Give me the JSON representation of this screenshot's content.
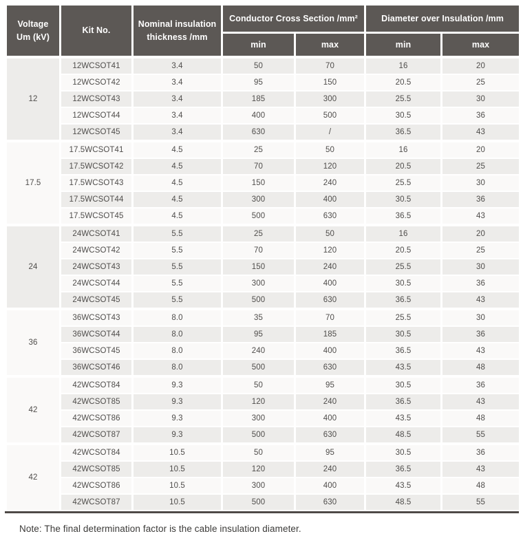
{
  "colors": {
    "header_bg": "#5c5855",
    "header_text": "#ffffff",
    "row_shade": "#edecea",
    "row_light": "#faf9f8",
    "cell_text": "#4f4d4b",
    "rule": "#4e4a47",
    "note_text": "#3b3a38"
  },
  "table": {
    "header": {
      "voltage": "Voltage\nUm (kV)",
      "kit_no": "Kit No.",
      "nominal_thickness": "Nominal insulation\nthickness /mm",
      "conductor_cross_section": "Conductor Cross Section /mm²",
      "diameter_over_insulation": "Diameter over Insulation /mm",
      "min": "min",
      "max": "max"
    },
    "groups": [
      {
        "voltage": "12",
        "rows": [
          [
            "12WCSOT41",
            "3.4",
            "50",
            "70",
            "16",
            "20"
          ],
          [
            "12WCSOT42",
            "3.4",
            "95",
            "150",
            "20.5",
            "25"
          ],
          [
            "12WCSOT43",
            "3.4",
            "185",
            "300",
            "25.5",
            "30"
          ],
          [
            "12WCSOT44",
            "3.4",
            "400",
            "500",
            "30.5",
            "36"
          ],
          [
            "12WCSOT45",
            "3.4",
            "630",
            "/",
            "36.5",
            "43"
          ]
        ]
      },
      {
        "voltage": "17.5",
        "rows": [
          [
            "17.5WCSOT41",
            "4.5",
            "25",
            "50",
            "16",
            "20"
          ],
          [
            "17.5WCSOT42",
            "4.5",
            "70",
            "120",
            "20.5",
            "25"
          ],
          [
            "17.5WCSOT43",
            "4.5",
            "150",
            "240",
            "25.5",
            "30"
          ],
          [
            "17.5WCSOT44",
            "4.5",
            "300",
            "400",
            "30.5",
            "36"
          ],
          [
            "17.5WCSOT45",
            "4.5",
            "500",
            "630",
            "36.5",
            "43"
          ]
        ]
      },
      {
        "voltage": "24",
        "rows": [
          [
            "24WCSOT41",
            "5.5",
            "25",
            "50",
            "16",
            "20"
          ],
          [
            "24WCSOT42",
            "5.5",
            "70",
            "120",
            "20.5",
            "25"
          ],
          [
            "24WCSOT43",
            "5.5",
            "150",
            "240",
            "25.5",
            "30"
          ],
          [
            "24WCSOT44",
            "5.5",
            "300",
            "400",
            "30.5",
            "36"
          ],
          [
            "24WCSOT45",
            "5.5",
            "500",
            "630",
            "36.5",
            "43"
          ]
        ]
      },
      {
        "voltage": "36",
        "rows": [
          [
            "36WCSOT43",
            "8.0",
            "35",
            "70",
            "25.5",
            "30"
          ],
          [
            "36WCSOT44",
            "8.0",
            "95",
            "185",
            "30.5",
            "36"
          ],
          [
            "36WCSOT45",
            "8.0",
            "240",
            "400",
            "36.5",
            "43"
          ],
          [
            "36WCSOT46",
            "8.0",
            "500",
            "630",
            "43.5",
            "48"
          ]
        ]
      },
      {
        "voltage": "42",
        "rows": [
          [
            "42WCSOT84",
            "9.3",
            "50",
            "95",
            "30.5",
            "36"
          ],
          [
            "42WCSOT85",
            "9.3",
            "120",
            "240",
            "36.5",
            "43"
          ],
          [
            "42WCSOT86",
            "9.3",
            "300",
            "400",
            "43.5",
            "48"
          ],
          [
            "42WCSOT87",
            "9.3",
            "500",
            "630",
            "48.5",
            "55"
          ]
        ]
      },
      {
        "voltage": "42",
        "rows": [
          [
            "42WCSOT84",
            "10.5",
            "50",
            "95",
            "30.5",
            "36"
          ],
          [
            "42WCSOT85",
            "10.5",
            "120",
            "240",
            "36.5",
            "43"
          ],
          [
            "42WCSOT86",
            "10.5",
            "300",
            "400",
            "43.5",
            "48"
          ],
          [
            "42WCSOT87",
            "10.5",
            "500",
            "630",
            "48.5",
            "55"
          ]
        ]
      }
    ]
  },
  "note": "Note: The final determination factor is the cable insulation diameter."
}
